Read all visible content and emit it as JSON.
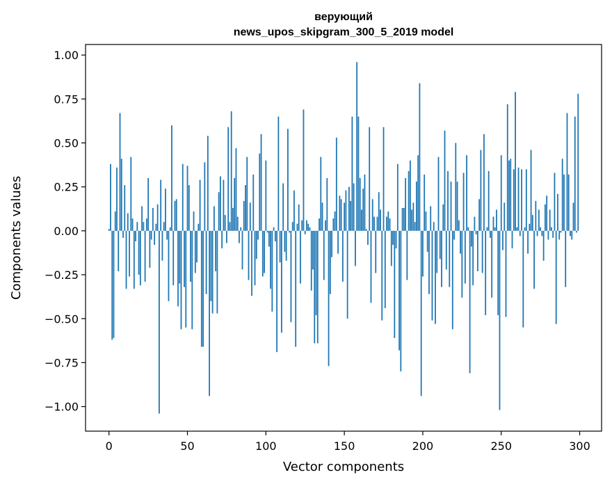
{
  "chart_data": {
    "type": "bar",
    "title": "верующий",
    "subtitle": "news_upos_skipgram_300_5_2019 model",
    "xlabel": "Vector components",
    "ylabel": "Components values",
    "xlim": [
      -14.95,
      313.95
    ],
    "ylim": [
      -1.14,
      1.06
    ],
    "xticks": [
      0,
      50,
      100,
      150,
      200,
      250,
      300
    ],
    "yticks": [
      -1.0,
      -0.75,
      -0.5,
      -0.25,
      0.0,
      0.25,
      0.5,
      0.75,
      1.0
    ],
    "ytick_labels": [
      "−1.00",
      "−0.75",
      "−0.50",
      "−0.25",
      "0.00",
      "0.25",
      "0.50",
      "0.75",
      "1.00"
    ],
    "xtick_labels": [
      "0",
      "50",
      "100",
      "150",
      "200",
      "250",
      "300"
    ],
    "bar_color": "#1f77b4",
    "grid": false,
    "x": [
      0,
      1,
      2,
      3,
      4,
      5,
      6,
      7,
      8,
      9,
      10,
      11,
      12,
      13,
      14,
      15,
      16,
      17,
      18,
      19,
      20,
      21,
      22,
      23,
      24,
      25,
      26,
      27,
      28,
      29,
      30,
      31,
      32,
      33,
      34,
      35,
      36,
      37,
      38,
      39,
      40,
      41,
      42,
      43,
      44,
      45,
      46,
      47,
      48,
      49,
      50,
      51,
      52,
      53,
      54,
      55,
      56,
      57,
      58,
      59,
      60,
      61,
      62,
      63,
      64,
      65,
      66,
      67,
      68,
      69,
      70,
      71,
      72,
      73,
      74,
      75,
      76,
      77,
      78,
      79,
      80,
      81,
      82,
      83,
      84,
      85,
      86,
      87,
      88,
      89,
      90,
      91,
      92,
      93,
      94,
      95,
      96,
      97,
      98,
      99,
      100,
      101,
      102,
      103,
      104,
      105,
      106,
      107,
      108,
      109,
      110,
      111,
      112,
      113,
      114,
      115,
      116,
      117,
      118,
      119,
      120,
      121,
      122,
      123,
      124,
      125,
      126,
      127,
      128,
      129,
      130,
      131,
      132,
      133,
      134,
      135,
      136,
      137,
      138,
      139,
      140,
      141,
      142,
      143,
      144,
      145,
      146,
      147,
      148,
      149,
      150,
      151,
      152,
      153,
      154,
      155,
      156,
      157,
      158,
      159,
      160,
      161,
      162,
      163,
      164,
      165,
      166,
      167,
      168,
      169,
      170,
      171,
      172,
      173,
      174,
      175,
      176,
      177,
      178,
      179,
      180,
      181,
      182,
      183,
      184,
      185,
      186,
      187,
      188,
      189,
      190,
      191,
      192,
      193,
      194,
      195,
      196,
      197,
      198,
      199,
      200,
      201,
      202,
      203,
      204,
      205,
      206,
      207,
      208,
      209,
      210,
      211,
      212,
      213,
      214,
      215,
      216,
      217,
      218,
      219,
      220,
      221,
      222,
      223,
      224,
      225,
      226,
      227,
      228,
      229,
      230,
      231,
      232,
      233,
      234,
      235,
      236,
      237,
      238,
      239,
      240,
      241,
      242,
      243,
      244,
      245,
      246,
      247,
      248,
      249,
      250,
      251,
      252,
      253,
      254,
      255,
      256,
      257,
      258,
      259,
      260,
      261,
      262,
      263,
      264,
      265,
      266,
      267,
      268,
      269,
      270,
      271,
      272,
      273,
      274,
      275,
      276,
      277,
      278,
      279,
      280,
      281,
      282,
      283,
      284,
      285,
      286,
      287,
      288,
      289,
      290,
      291,
      292,
      293,
      294,
      295,
      296,
      297,
      298,
      299
    ],
    "values": [
      0.01,
      0.38,
      -0.62,
      -0.61,
      0.11,
      0.36,
      -0.23,
      0.67,
      0.41,
      -0.04,
      0.26,
      -0.33,
      0.1,
      -0.26,
      0.42,
      0.07,
      -0.33,
      -0.06,
      0.05,
      -0.25,
      -0.31,
      0.14,
      0.05,
      -0.29,
      0.07,
      0.3,
      -0.21,
      -0.05,
      0.13,
      -0.08,
      0.04,
      0.15,
      -1.04,
      0.29,
      -0.17,
      0.05,
      0.24,
      -0.05,
      -0.4,
      0.02,
      0.6,
      -0.31,
      0.17,
      0.18,
      -0.43,
      -0.3,
      -0.56,
      0.38,
      -0.32,
      -0.55,
      0.37,
      0.26,
      -0.29,
      -0.56,
      0.11,
      -0.24,
      -0.18,
      0.04,
      0.29,
      -0.66,
      -0.66,
      0.39,
      -0.36,
      0.54,
      -0.94,
      -0.4,
      -0.47,
      0.14,
      -0.23,
      -0.47,
      0.22,
      0.31,
      -0.1,
      0.29,
      0.09,
      -0.07,
      0.59,
      0.05,
      0.68,
      0.13,
      0.3,
      0.47,
      0.08,
      -0.07,
      0.02,
      -0.22,
      0.17,
      0.26,
      0.42,
      -0.28,
      0.16,
      -0.37,
      0.32,
      -0.31,
      -0.16,
      -0.05,
      0.44,
      0.55,
      -0.26,
      -0.24,
      0.4,
      -0.01,
      -0.09,
      -0.33,
      -0.46,
      0.02,
      -0.06,
      -0.69,
      0.65,
      -0.18,
      -0.58,
      0.27,
      -0.12,
      -0.17,
      0.58,
      -0.01,
      -0.52,
      0.05,
      0.23,
      -0.66,
      0.04,
      0.15,
      -0.3,
      0.06,
      0.69,
      -0.02,
      0.06,
      0.04,
      0.02,
      -0.34,
      -0.22,
      -0.64,
      -0.48,
      -0.64,
      0.07,
      0.42,
      0.16,
      -0.28,
      0.06,
      0.3,
      -0.77,
      -0.36,
      -0.15,
      0.07,
      0.11,
      0.53,
      -0.13,
      0.2,
      0.18,
      -0.29,
      0.16,
      0.23,
      -0.5,
      0.25,
      0.17,
      0.65,
      0.27,
      -0.2,
      0.96,
      0.65,
      0.3,
      0.12,
      0.24,
      0.32,
      0.01,
      -0.08,
      0.59,
      -0.41,
      0.18,
      0.08,
      -0.24,
      0.08,
      0.22,
      0.12,
      -0.51,
      0.59,
      -0.44,
      0.08,
      0.11,
      0.07,
      -0.2,
      -0.08,
      -0.61,
      -0.1,
      0.38,
      -0.68,
      -0.8,
      0.13,
      0.13,
      0.3,
      -0.28,
      0.34,
      0.4,
      0.12,
      0.16,
      0.05,
      0.28,
      0.43,
      0.84,
      -0.94,
      -0.26,
      0.32,
      0.11,
      -0.12,
      -0.36,
      0.14,
      -0.51,
      0.05,
      -0.53,
      -0.24,
      0.42,
      -0.16,
      -0.32,
      0.15,
      0.57,
      -0.22,
      0.34,
      -0.32,
      0.28,
      -0.56,
      -0.05,
      0.5,
      0.28,
      0.06,
      -0.13,
      -0.38,
      0.33,
      -0.3,
      0.43,
      0.02,
      -0.81,
      -0.09,
      -0.31,
      0.08,
      -0.02,
      -0.23,
      0.18,
      0.46,
      -0.24,
      0.55,
      -0.48,
      0.02,
      0.34,
      -0.04,
      -0.38,
      0.08,
      0.02,
      0.12,
      -0.48,
      -1.02,
      0.43,
      -0.11,
      0.16,
      -0.49,
      0.72,
      0.4,
      0.41,
      -0.1,
      0.35,
      0.79,
      0.02,
      0.36,
      -0.03,
      0.35,
      -0.55,
      0.02,
      0.35,
      -0.13,
      0.04,
      0.46,
      0.09,
      -0.33,
      0.17,
      -0.03,
      0.12,
      0.02,
      -0.03,
      -0.17,
      0.15,
      0.2,
      -0.05,
      0.12,
      0.02,
      -0.04,
      0.33,
      -0.53,
      0.21,
      -0.05,
      -0.01,
      0.41,
      0.32,
      -0.32,
      0.67,
      0.32,
      -0.03,
      -0.05,
      0.16,
      0.65,
      -0.01,
      0.78
    ]
  }
}
